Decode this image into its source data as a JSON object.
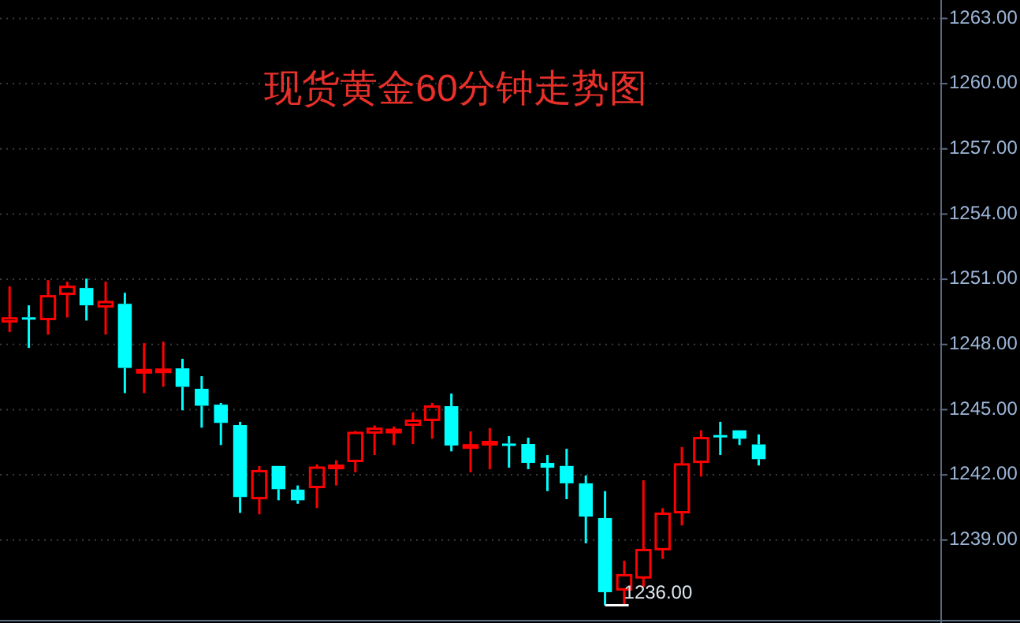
{
  "chart_data": {
    "type": "candlestick",
    "title": "现货黄金60分钟走势图",
    "categories": [
      null,
      null,
      null,
      null,
      null,
      null,
      null,
      null,
      null,
      null,
      null,
      null,
      null,
      null,
      null,
      null,
      null,
      null,
      null,
      null,
      null,
      null,
      null,
      null,
      null,
      null,
      null,
      null,
      null,
      null,
      null,
      null,
      null,
      null,
      null,
      null,
      null,
      null,
      null,
      null,
      null,
      null,
      null,
      null,
      null,
      null,
      null,
      null,
      null
    ],
    "ohlc": [
      [
        1249.06,
        1250.67,
        1248.57,
        1249.2
      ],
      [
        1249.25,
        1249.8,
        1247.84,
        1249.2
      ],
      [
        1249.17,
        1250.96,
        1248.45,
        1250.22
      ],
      [
        1250.33,
        1250.89,
        1249.24,
        1250.65
      ],
      [
        1250.6,
        1251.03,
        1249.1,
        1249.8
      ],
      [
        1249.75,
        1250.89,
        1248.45,
        1249.95
      ],
      [
        1249.87,
        1250.38,
        1245.76,
        1246.92
      ],
      [
        1246.78,
        1248.06,
        1245.76,
        1246.82
      ],
      [
        1246.78,
        1248.13,
        1246.05,
        1246.84
      ],
      [
        1246.9,
        1247.34,
        1244.97,
        1246.05
      ],
      [
        1245.96,
        1246.54,
        1244.17,
        1245.18
      ],
      [
        1245.23,
        1245.31,
        1243.37,
        1244.39
      ],
      [
        1244.29,
        1244.44,
        1240.25,
        1240.98
      ],
      [
        1240.93,
        1242.41,
        1240.18,
        1242.17
      ],
      [
        1242.41,
        1242.41,
        1240.83,
        1241.34
      ],
      [
        1241.32,
        1241.51,
        1240.67,
        1240.83
      ],
      [
        1241.44,
        1242.48,
        1240.47,
        1242.33
      ],
      [
        1242.38,
        1242.67,
        1241.51,
        1242.42
      ],
      [
        1242.64,
        1244.02,
        1242.12,
        1243.93
      ],
      [
        1243.95,
        1244.27,
        1242.91,
        1244.12
      ],
      [
        1244.03,
        1244.22,
        1243.37,
        1244.07
      ],
      [
        1244.31,
        1244.87,
        1243.42,
        1244.49
      ],
      [
        1244.53,
        1245.31,
        1243.66,
        1245.14
      ],
      [
        1245.16,
        1245.74,
        1243.08,
        1243.35
      ],
      [
        1243.3,
        1244.0,
        1242.12,
        1243.36
      ],
      [
        1243.45,
        1244.15,
        1242.26,
        1243.51
      ],
      [
        1243.44,
        1243.78,
        1242.33,
        1243.38
      ],
      [
        1243.42,
        1243.71,
        1242.26,
        1242.55
      ],
      [
        1242.55,
        1242.91,
        1241.25,
        1242.33
      ],
      [
        1242.41,
        1243.2,
        1240.88,
        1241.61
      ],
      [
        1241.61,
        1241.97,
        1238.85,
        1240.08
      ],
      [
        1240.01,
        1241.25,
        1236.0,
        1236.6
      ],
      [
        1236.73,
        1238.05,
        1236.05,
        1237.38
      ],
      [
        1237.28,
        1241.75,
        1236.84,
        1238.54
      ],
      [
        1238.58,
        1240.47,
        1238.13,
        1240.21
      ],
      [
        1240.28,
        1243.28,
        1239.67,
        1242.48
      ],
      [
        1242.6,
        1244.05,
        1241.92,
        1243.69
      ],
      [
        1243.83,
        1244.44,
        1242.91,
        1243.77
      ],
      [
        1244.05,
        1244.05,
        1243.37,
        1243.66
      ],
      [
        1243.4,
        1243.86,
        1242.43,
        1242.72
      ],
      null,
      null,
      null,
      null,
      null,
      null,
      null,
      null,
      null
    ],
    "colors": [
      "#ff0000",
      "#00ffff",
      "#ff0000",
      "#ff0000",
      "#00ffff",
      "#ff0000",
      "#00ffff",
      "#ff0000",
      "#ff0000",
      "#00ffff",
      "#00ffff",
      "#00ffff",
      "#00ffff",
      "#ff0000",
      "#00ffff",
      "#00ffff",
      "#ff0000",
      "#ff0000",
      "#ff0000",
      "#ff0000",
      "#ff0000",
      "#ff0000",
      "#ff0000",
      "#00ffff",
      "#ff0000",
      "#ff0000",
      "#00ffff",
      "#00ffff",
      "#00ffff",
      "#00ffff",
      "#00ffff",
      "#00ffff",
      "#ff0000",
      "#ff0000",
      "#ff0000",
      "#ff0000",
      "#ff0000",
      "#00ffff",
      "#00ffff",
      "#00ffff",
      null,
      null,
      null,
      null,
      null,
      null,
      null,
      null,
      null
    ],
    "ylim": [
      1235.4,
      1263.85
    ],
    "yticks": [
      {
        "value": 1239,
        "label": "1239.00"
      },
      {
        "value": 1242,
        "label": "1242.00"
      },
      {
        "value": 1245,
        "label": "1245.00"
      },
      {
        "value": 1248,
        "label": "1248.00"
      },
      {
        "value": 1251,
        "label": "1251.00"
      },
      {
        "value": 1254,
        "label": "1254.00"
      },
      {
        "value": 1257,
        "label": "1257.00"
      },
      {
        "value": 1260,
        "label": "1260.00"
      },
      {
        "value": 1263,
        "label": "1263.00"
      }
    ],
    "grid": "y",
    "annotations": [
      "1236.00"
    ]
  }
}
